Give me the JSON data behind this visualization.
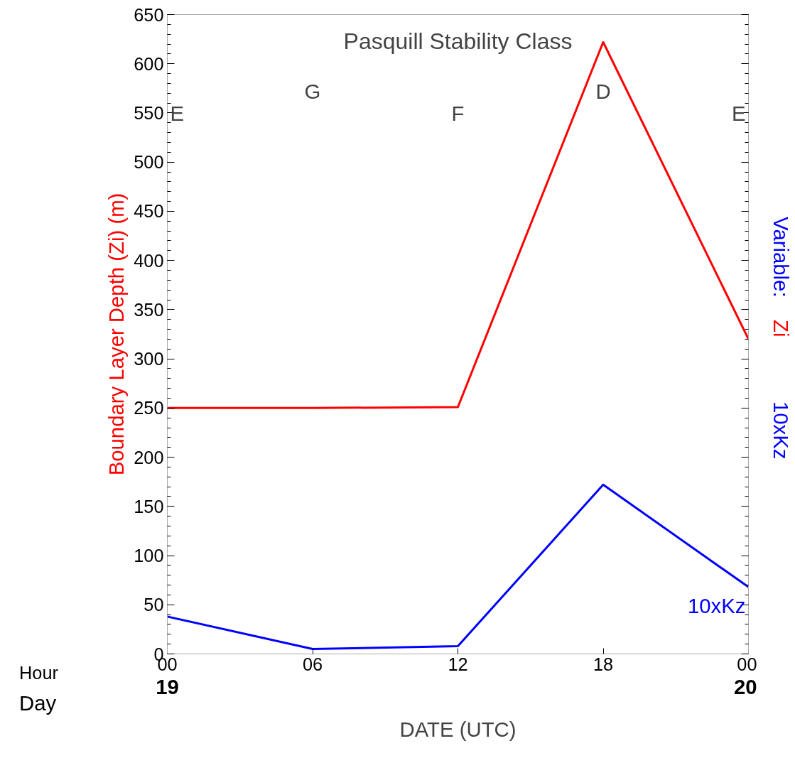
{
  "chart_data": {
    "type": "line",
    "title": "Pasquill Stability Class",
    "xlabel": "DATE (UTC)",
    "ylabel": "Boundary Layer Depth (Zi) (m)",
    "x": [
      0,
      6,
      12,
      18,
      24
    ],
    "series": [
      {
        "color": "#ff0000",
        "values": [
          250,
          250,
          251,
          622,
          320
        ]
      },
      {
        "name": "10xKz",
        "color": "#0000ff",
        "values": [
          38,
          5,
          8,
          172,
          68
        ]
      }
    ],
    "xlim": [
      0,
      24
    ],
    "ylim": [
      0,
      650
    ],
    "xticks": [
      {
        "value": 0,
        "label": "00"
      },
      {
        "value": 6,
        "label": "06"
      },
      {
        "value": 12,
        "label": "12"
      },
      {
        "value": 18,
        "label": "18"
      },
      {
        "value": 24,
        "label": "00"
      }
    ],
    "yticks": [
      0,
      50,
      100,
      150,
      200,
      250,
      300,
      350,
      400,
      450,
      500,
      550,
      600,
      650
    ],
    "grid": false,
    "marker": "none",
    "line_style": "solid",
    "annotations": [
      "Hour",
      "Day",
      "Variable:",
      "Zi",
      "10xKz",
      "E",
      "G",
      "F",
      "D",
      "E",
      "19",
      "20"
    ]
  }
}
